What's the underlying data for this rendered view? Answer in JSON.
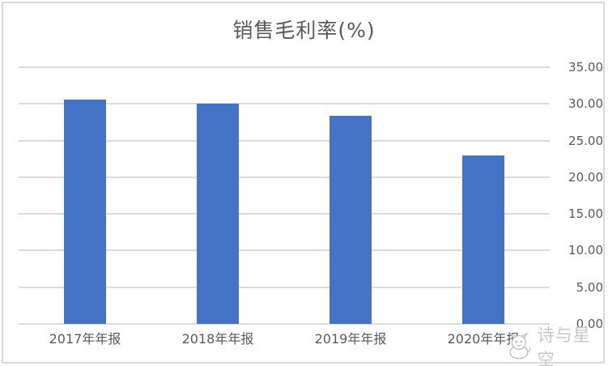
{
  "chart_data": {
    "type": "bar",
    "title": "销售毛利率(%)",
    "categories": [
      "2017年年报",
      "2018年年报",
      "2019年年报",
      "2020年年报"
    ],
    "values": [
      30.6,
      30.0,
      28.4,
      23.0
    ],
    "xlabel": "",
    "ylabel": "",
    "ylim": [
      0,
      35
    ],
    "ytick_interval": 5,
    "yticks": [
      {
        "value": 0,
        "label": "0.00"
      },
      {
        "value": 5,
        "label": "5.00"
      },
      {
        "value": 10,
        "label": "10.00"
      },
      {
        "value": 15,
        "label": "15.00"
      },
      {
        "value": 20,
        "label": "20.00"
      },
      {
        "value": 25,
        "label": "25.00"
      },
      {
        "value": 30,
        "label": "30.00"
      },
      {
        "value": 35,
        "label": "35.00"
      }
    ],
    "grid": true,
    "value_axis_side": "right",
    "legend_position": "none",
    "colors": {
      "bar": "#4472C4",
      "gridline": "#dbdbdb",
      "axis_text": "#595959",
      "title_text": "#595959",
      "border": "#d9d9d9",
      "watermark_text": "#c6c6c6"
    }
  },
  "watermark": {
    "text": "诗与星空"
  }
}
